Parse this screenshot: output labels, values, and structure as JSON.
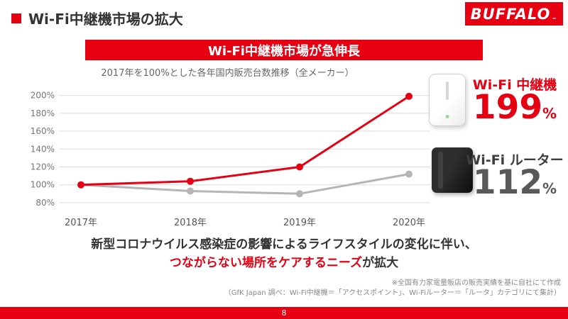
{
  "colors": {
    "brand_red": "#E60012",
    "gray_line": "#b5b5b5",
    "dark_text": "#333333"
  },
  "header": {
    "title": "Wi-Fi中継機市場の拡大",
    "logo_text": "BUFFALO",
    "logo_tm": "™"
  },
  "banner": {
    "text": "Wi-Fi中継機市場が急伸長"
  },
  "chart_data": {
    "type": "line",
    "title": "2017年を100%とした各年国内販売台数推移（全メーカー）",
    "categories": [
      "2017年",
      "2018年",
      "2019年",
      "2020年"
    ],
    "yticks": [
      80,
      100,
      120,
      140,
      160,
      180,
      200
    ],
    "ylim": [
      72,
      210
    ],
    "unit": "%",
    "grid": true,
    "legend_position": "right-labels",
    "series": [
      {
        "name": "Wi-Fi ルーター",
        "values": [
          100,
          93,
          90,
          112
        ],
        "color": "#b5b5b5"
      },
      {
        "name": "Wi-Fi 中継機",
        "values": [
          100,
          104,
          120,
          199
        ],
        "color": "#E60012"
      }
    ]
  },
  "callouts": {
    "extender": {
      "label": "Wi-Fi 中継機",
      "value": "199",
      "unit": "%"
    },
    "router": {
      "label": "Wi-Fi ルーター",
      "value": "112",
      "unit": "%"
    }
  },
  "message": {
    "line1": "新型コロナウイルス感染症の影響によるライフスタイルの変化に伴い、",
    "line2_highlight": "つながらない場所をケアするニーズ",
    "line2_rest": "が拡大"
  },
  "footnotes": [
    "※全国有力家電量販店の販売実績を基に自社にて作成",
    "（GfK Japan 調べ：Wi-Fi中継機＝「アクセスポイント」、Wi-Fiルーター＝「ルータ」カテゴリにて集計）"
  ],
  "footer": {
    "page_number": "8"
  }
}
